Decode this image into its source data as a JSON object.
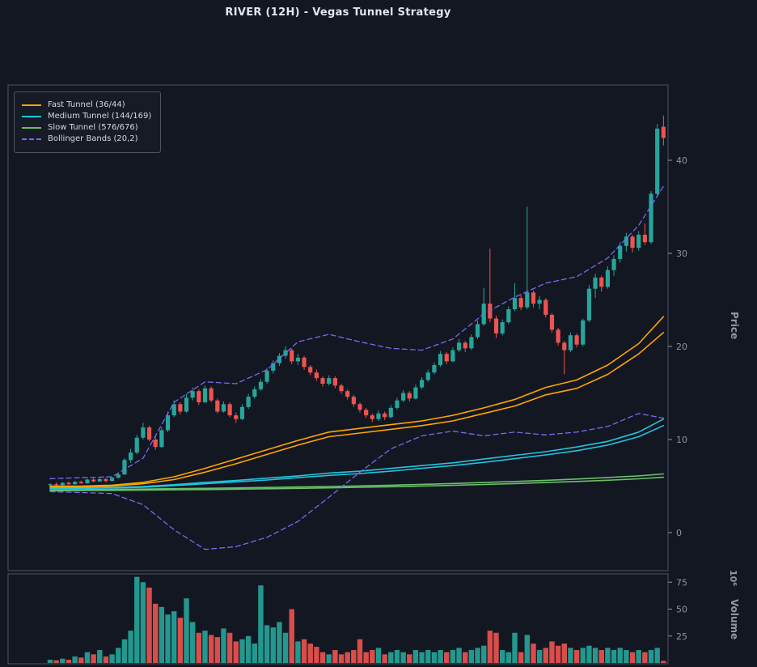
{
  "theme": {
    "background": "#131722",
    "panel_border": "#4d5363",
    "axis_text": "#8f96a0",
    "title_text": "#e3e6ee",
    "up": "#26a69a",
    "down": "#ef5350",
    "fast": "#ffa500",
    "medium": "#22c3dd",
    "slow": "#6abf69",
    "bollinger": "#7b68ee"
  },
  "chart_data": {
    "type": "candlestick",
    "title": "RIVER (12H) - Vegas Tunnel Strategy",
    "symbol": "RIVER",
    "timeframe": "12H",
    "legend": {
      "position": "upper left",
      "entries": [
        {
          "label": "Fast Tunnel (36/44)",
          "color": "#ffa500",
          "dash": false
        },
        {
          "label": "Medium Tunnel (144/169)",
          "color": "#22c3dd",
          "dash": false
        },
        {
          "label": "Slow Tunnel (576/676)",
          "color": "#6abf69",
          "dash": false
        },
        {
          "label": "Bollinger Bands (20,2)",
          "color": "#7b68ee",
          "dash": true
        }
      ]
    },
    "axes": {
      "price": {
        "label": "Price",
        "ticks": [
          0,
          10,
          20,
          30,
          40
        ],
        "range": [
          -4,
          48
        ]
      },
      "volume": {
        "label": "Volume",
        "scale_label": "10⁶",
        "ticks": [
          25,
          50,
          75
        ],
        "range": [
          0,
          83
        ]
      },
      "x_labels_visible": false,
      "grid": false
    },
    "candles": [
      [
        5.1,
        5.3,
        4.9,
        5.2
      ],
      [
        5.2,
        5.4,
        5.0,
        5.1
      ],
      [
        5.1,
        5.45,
        5.05,
        5.35
      ],
      [
        5.35,
        5.5,
        5.1,
        5.2
      ],
      [
        5.2,
        5.55,
        5.15,
        5.45
      ],
      [
        5.45,
        5.6,
        5.25,
        5.3
      ],
      [
        5.3,
        5.8,
        5.25,
        5.7
      ],
      [
        5.7,
        5.85,
        5.4,
        5.5
      ],
      [
        5.5,
        5.9,
        5.45,
        5.75
      ],
      [
        5.75,
        5.9,
        5.4,
        5.55
      ],
      [
        5.55,
        6.0,
        5.5,
        5.9
      ],
      [
        5.9,
        6.4,
        5.8,
        6.25
      ],
      [
        6.25,
        8.0,
        6.2,
        7.8
      ],
      [
        7.8,
        9.0,
        7.5,
        8.6
      ],
      [
        8.6,
        10.5,
        8.4,
        10.2
      ],
      [
        10.2,
        11.8,
        10.0,
        11.3
      ],
      [
        11.3,
        11.5,
        9.8,
        10.0
      ],
      [
        10.0,
        10.3,
        8.9,
        9.2
      ],
      [
        9.2,
        11.3,
        9.1,
        11.0
      ],
      [
        11.0,
        13.0,
        10.8,
        12.6
      ],
      [
        12.6,
        14.2,
        12.4,
        13.8
      ],
      [
        13.8,
        14.0,
        12.7,
        13.0
      ],
      [
        13.0,
        14.9,
        12.9,
        14.5
      ],
      [
        14.5,
        15.6,
        14.2,
        15.2
      ],
      [
        15.2,
        15.4,
        13.7,
        14.0
      ],
      [
        14.0,
        15.8,
        13.9,
        15.5
      ],
      [
        15.5,
        15.7,
        14.0,
        14.2
      ],
      [
        14.2,
        14.4,
        12.8,
        13.0
      ],
      [
        13.0,
        14.1,
        12.9,
        13.8
      ],
      [
        13.8,
        14.0,
        12.4,
        12.6
      ],
      [
        12.6,
        12.9,
        11.8,
        12.2
      ],
      [
        12.2,
        13.8,
        12.1,
        13.5
      ],
      [
        13.5,
        14.9,
        13.3,
        14.6
      ],
      [
        14.6,
        15.7,
        14.4,
        15.4
      ],
      [
        15.4,
        16.5,
        15.2,
        16.2
      ],
      [
        16.2,
        17.7,
        16.0,
        17.4
      ],
      [
        17.4,
        18.5,
        17.1,
        18.2
      ],
      [
        18.2,
        19.3,
        17.9,
        19.0
      ],
      [
        19.0,
        20.0,
        18.7,
        19.6
      ],
      [
        19.6,
        19.8,
        18.1,
        18.4
      ],
      [
        18.4,
        19.2,
        18.0,
        18.8
      ],
      [
        18.8,
        19.0,
        17.5,
        17.8
      ],
      [
        17.8,
        18.0,
        16.9,
        17.2
      ],
      [
        17.2,
        17.5,
        16.3,
        16.6
      ],
      [
        16.6,
        16.8,
        15.7,
        16.0
      ],
      [
        16.0,
        16.9,
        15.8,
        16.6
      ],
      [
        16.6,
        16.8,
        15.5,
        15.8
      ],
      [
        15.8,
        16.0,
        14.9,
        15.2
      ],
      [
        15.2,
        15.4,
        14.3,
        14.6
      ],
      [
        14.6,
        14.8,
        13.5,
        13.8
      ],
      [
        13.8,
        14.0,
        12.9,
        13.2
      ],
      [
        13.2,
        13.4,
        12.3,
        12.6
      ],
      [
        12.6,
        12.8,
        11.9,
        12.2
      ],
      [
        12.2,
        13.1,
        12.0,
        12.8
      ],
      [
        12.8,
        13.0,
        12.1,
        12.4
      ],
      [
        12.4,
        13.7,
        12.3,
        13.4
      ],
      [
        13.4,
        14.5,
        13.2,
        14.2
      ],
      [
        14.2,
        15.3,
        14.0,
        15.0
      ],
      [
        15.0,
        15.2,
        14.1,
        14.4
      ],
      [
        14.4,
        15.9,
        14.3,
        15.6
      ],
      [
        15.6,
        16.7,
        15.4,
        16.4
      ],
      [
        16.4,
        17.5,
        16.2,
        17.2
      ],
      [
        17.2,
        18.3,
        17.0,
        18.0
      ],
      [
        18.0,
        19.5,
        17.8,
        19.2
      ],
      [
        19.2,
        19.4,
        18.1,
        18.4
      ],
      [
        18.4,
        19.9,
        18.3,
        19.6
      ],
      [
        19.6,
        20.8,
        19.4,
        20.4
      ],
      [
        20.4,
        20.6,
        19.4,
        19.8
      ],
      [
        19.8,
        21.3,
        19.6,
        21.0
      ],
      [
        21.0,
        22.8,
        20.8,
        22.4
      ],
      [
        22.4,
        26.3,
        22.2,
        24.6
      ],
      [
        24.6,
        30.5,
        22.6,
        23.0
      ],
      [
        23.0,
        23.3,
        20.9,
        21.4
      ],
      [
        21.4,
        22.9,
        21.2,
        22.6
      ],
      [
        22.6,
        24.3,
        22.4,
        24.0
      ],
      [
        24.0,
        26.8,
        23.8,
        25.2
      ],
      [
        25.2,
        25.5,
        23.9,
        24.2
      ],
      [
        24.2,
        35.0,
        24.0,
        25.8
      ],
      [
        25.8,
        26.0,
        24.2,
        24.6
      ],
      [
        24.6,
        25.4,
        24.0,
        25.0
      ],
      [
        25.0,
        25.2,
        23.1,
        23.4
      ],
      [
        23.4,
        23.6,
        21.5,
        21.8
      ],
      [
        21.8,
        22.0,
        20.1,
        20.4
      ],
      [
        20.4,
        20.6,
        17.0,
        19.6
      ],
      [
        19.6,
        21.5,
        19.4,
        21.2
      ],
      [
        21.2,
        21.4,
        19.9,
        20.2
      ],
      [
        20.2,
        23.0,
        20.0,
        22.8
      ],
      [
        22.8,
        26.6,
        22.6,
        26.2
      ],
      [
        26.2,
        27.8,
        25.2,
        27.4
      ],
      [
        27.4,
        27.6,
        25.9,
        26.4
      ],
      [
        26.4,
        28.6,
        26.2,
        28.2
      ],
      [
        28.2,
        29.8,
        27.6,
        29.4
      ],
      [
        29.4,
        31.2,
        29.0,
        30.8
      ],
      [
        30.8,
        32.2,
        30.2,
        31.8
      ],
      [
        31.8,
        32.0,
        30.1,
        30.6
      ],
      [
        30.6,
        32.4,
        30.3,
        32.0
      ],
      [
        32.0,
        33.2,
        30.9,
        31.2
      ],
      [
        31.2,
        36.7,
        31.0,
        36.4
      ],
      [
        36.4,
        43.9,
        36.2,
        43.4
      ],
      [
        43.6,
        44.8,
        41.6,
        42.4
      ]
    ],
    "volumes_millions": [
      3,
      2.5,
      4,
      3,
      6,
      5,
      10,
      8,
      12,
      6,
      8,
      14,
      22,
      30,
      80,
      75,
      70,
      55,
      52,
      45,
      48,
      42,
      60,
      38,
      28,
      30,
      26,
      24,
      32,
      28,
      20,
      22,
      25,
      18,
      72,
      35,
      33,
      38,
      28,
      50,
      20,
      22,
      18,
      15,
      10,
      8,
      12,
      8,
      10,
      12,
      22,
      10,
      12,
      14,
      8,
      10,
      12,
      10,
      8,
      12,
      10,
      12,
      10,
      12,
      10,
      12,
      14,
      10,
      12,
      14,
      16,
      30,
      28,
      12,
      10,
      28,
      10,
      26,
      18,
      12,
      14,
      20,
      16,
      18,
      14,
      12,
      14,
      16,
      14,
      12,
      14,
      12,
      14,
      12,
      10,
      12,
      10,
      12,
      14,
      2
    ],
    "indicators": {
      "sample_indices": [
        0,
        5,
        10,
        15,
        20,
        25,
        30,
        35,
        40,
        45,
        50,
        55,
        60,
        65,
        70,
        75,
        80,
        85,
        90,
        95,
        99
      ],
      "fast_upper": [
        5.0,
        5.0,
        5.1,
        5.4,
        6.0,
        6.9,
        7.9,
        8.9,
        9.9,
        10.8,
        11.2,
        11.6,
        12.0,
        12.6,
        13.4,
        14.3,
        15.6,
        16.4,
        18.0,
        20.3,
        23.2
      ],
      "fast_lower": [
        4.9,
        4.9,
        5.0,
        5.25,
        5.7,
        6.5,
        7.4,
        8.4,
        9.4,
        10.3,
        10.7,
        11.1,
        11.5,
        12.0,
        12.8,
        13.6,
        14.8,
        15.5,
        17.0,
        19.2,
        21.5
      ],
      "medium_upper": [
        4.8,
        4.8,
        4.85,
        4.95,
        5.15,
        5.4,
        5.6,
        5.85,
        6.1,
        6.4,
        6.6,
        6.9,
        7.2,
        7.5,
        7.9,
        8.3,
        8.7,
        9.2,
        9.8,
        10.8,
        12.2
      ],
      "medium_lower": [
        4.75,
        4.75,
        4.8,
        4.88,
        5.05,
        5.25,
        5.45,
        5.65,
        5.9,
        6.15,
        6.35,
        6.6,
        6.9,
        7.2,
        7.55,
        7.95,
        8.35,
        8.8,
        9.4,
        10.3,
        11.5
      ],
      "slow_upper": [
        4.6,
        4.62,
        4.65,
        4.68,
        4.72,
        4.76,
        4.8,
        4.85,
        4.9,
        4.96,
        5.02,
        5.1,
        5.18,
        5.28,
        5.38,
        5.5,
        5.62,
        5.76,
        5.92,
        6.1,
        6.3
      ],
      "slow_lower": [
        4.5,
        4.52,
        4.54,
        4.57,
        4.6,
        4.63,
        4.67,
        4.71,
        4.76,
        4.81,
        4.87,
        4.93,
        5.0,
        5.08,
        5.17,
        5.27,
        5.38,
        5.5,
        5.63,
        5.78,
        5.95
      ],
      "bb_upper": [
        5.8,
        5.9,
        6.0,
        8.0,
        14.0,
        16.2,
        16.0,
        17.5,
        20.5,
        21.3,
        20.5,
        19.8,
        19.6,
        20.8,
        23.5,
        25.3,
        26.8,
        27.5,
        29.5,
        33.0,
        37.2
      ],
      "bb_lower": [
        4.4,
        4.3,
        4.2,
        3.0,
        0.3,
        -1.8,
        -1.5,
        -0.5,
        1.2,
        3.8,
        6.5,
        9.0,
        10.4,
        10.9,
        10.4,
        10.8,
        10.5,
        10.8,
        11.4,
        12.8,
        12.3
      ]
    }
  }
}
